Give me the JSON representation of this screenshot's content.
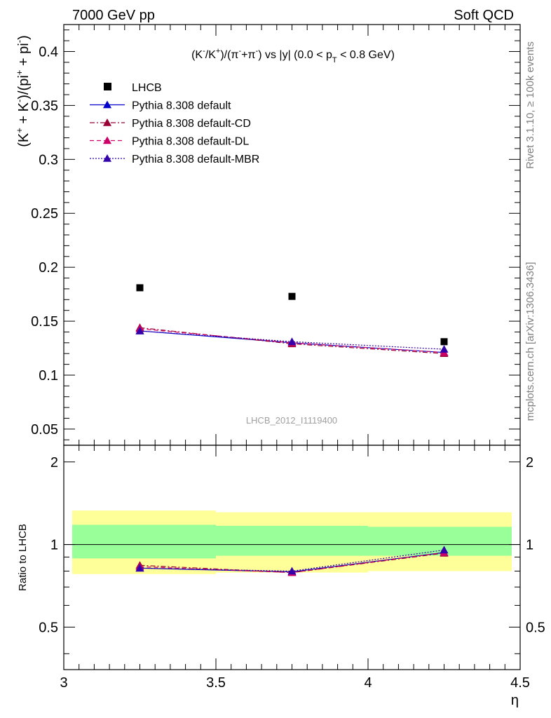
{
  "header": {
    "left": "7000 GeV pp",
    "right": "Soft QCD"
  },
  "side_labels": {
    "rivet": "Rivet 3.1.10, ≥ 100k events",
    "mcplots": "mcplots.cern.ch [arXiv:1306.3436]"
  },
  "chart_data": [
    {
      "type": "scatter",
      "title_parts": {
        "a": "(K",
        "a_sup": "-",
        "b": "/K",
        "b_sup": "+",
        "c": ")/(π",
        "c_sup": "-",
        "d": "+π",
        "d_sup": "-",
        "e": ") vs |y| (0.0 < p",
        "e_sub": "T",
        "f": " < 0.8 GeV)"
      },
      "ylabel_parts": {
        "a": "(K",
        "a_sup": "+",
        "b": " + K",
        "b_sup": "-",
        "c": ")/(pi",
        "c_sup": "+",
        "d": " + pi",
        "d_sup": "-",
        "e": ")"
      },
      "watermark": "LHCB_2012_I1119400",
      "xlim": [
        3.0,
        4.5
      ],
      "ylim": [
        0.035,
        0.425
      ],
      "yticks": [
        0.05,
        0.1,
        0.15,
        0.2,
        0.25,
        0.3,
        0.35,
        0.4
      ],
      "ytick_labels": [
        "0.05",
        "0.1",
        "0.15",
        "0.2",
        "0.25",
        "0.3",
        "0.35",
        "0.4"
      ],
      "legend_position": "top-left",
      "series": [
        {
          "name": "LHCB",
          "marker": "square",
          "color": "#000000",
          "x": [
            3.25,
            3.75,
            4.25
          ],
          "y": [
            0.181,
            0.173,
            0.131
          ]
        },
        {
          "name": "Pythia 8.308 default",
          "marker": "triangle",
          "line": "solid",
          "color": "#0000cc",
          "x": [
            3.25,
            3.75,
            4.25
          ],
          "y": [
            0.141,
            0.13,
            0.121
          ]
        },
        {
          "name": "Pythia 8.308 default-CD",
          "marker": "triangle",
          "line": "dashdot",
          "color": "#990033",
          "x": [
            3.25,
            3.75,
            4.25
          ],
          "y": [
            0.144,
            0.129,
            0.12
          ]
        },
        {
          "name": "Pythia 8.308 default-DL",
          "marker": "triangle",
          "line": "dashed",
          "color": "#cc0066",
          "x": [
            3.25,
            3.75,
            4.25
          ],
          "y": [
            0.143,
            0.13,
            0.121
          ]
        },
        {
          "name": "Pythia 8.308 default-MBR",
          "marker": "triangle",
          "line": "dotted",
          "color": "#3300aa",
          "x": [
            3.25,
            3.75,
            4.25
          ],
          "y": [
            0.141,
            0.131,
            0.124
          ]
        }
      ]
    },
    {
      "type": "scatter",
      "ylabel": "Ratio to LHCB",
      "xlabel": "η",
      "xlim": [
        3.0,
        4.5
      ],
      "ylim": [
        0.35,
        2.3
      ],
      "xticks": [
        3.0,
        3.5,
        4.0,
        4.5
      ],
      "xtick_labels": [
        "3",
        "3.5",
        "4",
        "4.5"
      ],
      "yticks": [
        0.5,
        1,
        2
      ],
      "ytick_labels": [
        "0.5",
        "1",
        "2"
      ],
      "bands": [
        {
          "x0": 3.0,
          "x1": 3.5,
          "yellow": [
            0.78,
            1.33
          ],
          "green": [
            0.89,
            1.18
          ]
        },
        {
          "x0": 3.5,
          "x1": 4.0,
          "yellow": [
            0.79,
            1.31
          ],
          "green": [
            0.91,
            1.17
          ]
        },
        {
          "x0": 4.0,
          "x1": 4.5,
          "yellow": [
            0.8,
            1.31
          ],
          "green": [
            0.91,
            1.16
          ]
        }
      ],
      "series": [
        {
          "name": "Pythia 8.308 default",
          "color": "#0000cc",
          "line": "solid",
          "x": [
            3.25,
            3.75,
            4.25
          ],
          "y": [
            0.82,
            0.795,
            0.935
          ]
        },
        {
          "name": "Pythia 8.308 default-CD",
          "color": "#990033",
          "line": "dashdot",
          "x": [
            3.25,
            3.75,
            4.25
          ],
          "y": [
            0.84,
            0.79,
            0.93
          ]
        },
        {
          "name": "Pythia 8.308 default-DL",
          "color": "#cc0066",
          "line": "dashed",
          "x": [
            3.25,
            3.75,
            4.25
          ],
          "y": [
            0.83,
            0.79,
            0.935
          ]
        },
        {
          "name": "Pythia 8.308 default-MBR",
          "color": "#3300aa",
          "line": "dotted",
          "x": [
            3.25,
            3.75,
            4.25
          ],
          "y": [
            0.82,
            0.8,
            0.955
          ]
        }
      ]
    }
  ]
}
